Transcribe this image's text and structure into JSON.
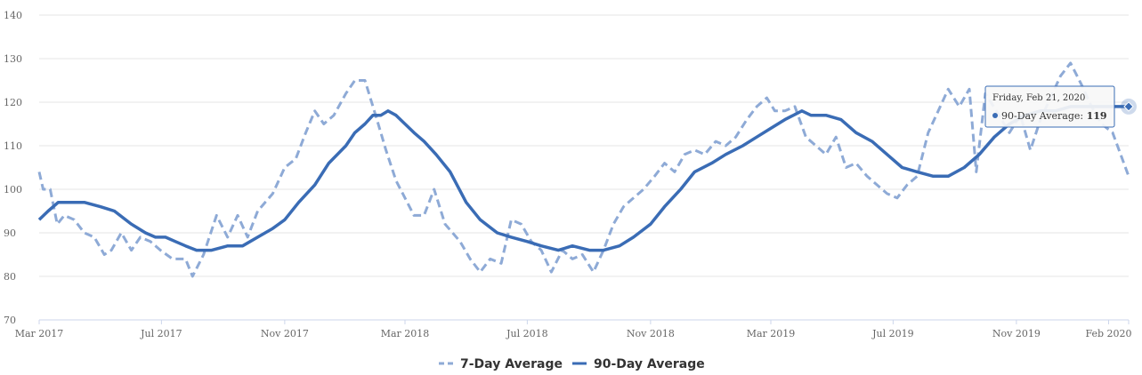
{
  "chart_data": {
    "type": "line",
    "title": "",
    "xlabel": "",
    "ylabel": "",
    "ylim": [
      70,
      140
    ],
    "y_ticks": [
      "70",
      "80",
      "90",
      "100",
      "110",
      "120",
      "130",
      "140"
    ],
    "x_range": [
      "2017-03-01",
      "2020-02-21"
    ],
    "x_ticks": [
      {
        "label": "Mar 2017",
        "date": "2017-03-01"
      },
      {
        "label": "Jul 2017",
        "date": "2017-07-01"
      },
      {
        "label": "Nov 2017",
        "date": "2017-11-01"
      },
      {
        "label": "Mar 2018",
        "date": "2018-03-01"
      },
      {
        "label": "Jul 2018",
        "date": "2018-07-01"
      },
      {
        "label": "Nov 2018",
        "date": "2018-11-01"
      },
      {
        "label": "Mar 2019",
        "date": "2019-03-01"
      },
      {
        "label": "Jul 2019",
        "date": "2019-07-01"
      },
      {
        "label": "Nov 2019",
        "date": "2019-11-01"
      },
      {
        "label": "Feb 2020",
        "date": "2020-02-01"
      }
    ],
    "grid": true,
    "legend_position": "bottom-center",
    "series": [
      {
        "name": "7-Day Average",
        "color": "#8eaad6",
        "style": "dashed",
        "points": [
          [
            "2017-03-01",
            104
          ],
          [
            "2017-03-05",
            100
          ],
          [
            "2017-03-12",
            100
          ],
          [
            "2017-03-19",
            92
          ],
          [
            "2017-03-26",
            94
          ],
          [
            "2017-04-05",
            93
          ],
          [
            "2017-04-15",
            90
          ],
          [
            "2017-04-25",
            89
          ],
          [
            "2017-05-05",
            85
          ],
          [
            "2017-05-12",
            86
          ],
          [
            "2017-05-22",
            90
          ],
          [
            "2017-06-01",
            86
          ],
          [
            "2017-06-10",
            89
          ],
          [
            "2017-06-20",
            88
          ],
          [
            "2017-06-30",
            86
          ],
          [
            "2017-07-12",
            84
          ],
          [
            "2017-07-25",
            84
          ],
          [
            "2017-08-01",
            80
          ],
          [
            "2017-08-12",
            85
          ],
          [
            "2017-08-25",
            94
          ],
          [
            "2017-09-05",
            89
          ],
          [
            "2017-09-15",
            94
          ],
          [
            "2017-09-25",
            89
          ],
          [
            "2017-10-05",
            95
          ],
          [
            "2017-10-20",
            99
          ],
          [
            "2017-11-01",
            105
          ],
          [
            "2017-11-12",
            107
          ],
          [
            "2017-11-22",
            113
          ],
          [
            "2017-12-01",
            118
          ],
          [
            "2017-12-10",
            115
          ],
          [
            "2017-12-20",
            117
          ],
          [
            "2018-01-01",
            122
          ],
          [
            "2018-01-10",
            125
          ],
          [
            "2018-01-20",
            125
          ],
          [
            "2018-02-01",
            116
          ],
          [
            "2018-02-10",
            109
          ],
          [
            "2018-02-20",
            102
          ],
          [
            "2018-03-01",
            98
          ],
          [
            "2018-03-10",
            94
          ],
          [
            "2018-03-20",
            94
          ],
          [
            "2018-03-30",
            100
          ],
          [
            "2018-04-10",
            92
          ],
          [
            "2018-04-25",
            88
          ],
          [
            "2018-05-05",
            84
          ],
          [
            "2018-05-15",
            81
          ],
          [
            "2018-05-25",
            84
          ],
          [
            "2018-06-05",
            83
          ],
          [
            "2018-06-15",
            93
          ],
          [
            "2018-06-25",
            92
          ],
          [
            "2018-07-05",
            88
          ],
          [
            "2018-07-15",
            86
          ],
          [
            "2018-07-25",
            81
          ],
          [
            "2018-08-05",
            86
          ],
          [
            "2018-08-15",
            84
          ],
          [
            "2018-08-25",
            85
          ],
          [
            "2018-09-05",
            81
          ],
          [
            "2018-09-15",
            86
          ],
          [
            "2018-09-25",
            92
          ],
          [
            "2018-10-05",
            96
          ],
          [
            "2018-10-15",
            98
          ],
          [
            "2018-10-25",
            100
          ],
          [
            "2018-11-05",
            103
          ],
          [
            "2018-11-15",
            106
          ],
          [
            "2018-11-25",
            104
          ],
          [
            "2018-12-05",
            108
          ],
          [
            "2018-12-15",
            109
          ],
          [
            "2018-12-25",
            108
          ],
          [
            "2019-01-05",
            111
          ],
          [
            "2019-01-15",
            110
          ],
          [
            "2019-01-25",
            112
          ],
          [
            "2019-02-05",
            116
          ],
          [
            "2019-02-15",
            119
          ],
          [
            "2019-02-25",
            121
          ],
          [
            "2019-03-05",
            118
          ],
          [
            "2019-03-15",
            118
          ],
          [
            "2019-03-25",
            119
          ],
          [
            "2019-04-05",
            112
          ],
          [
            "2019-04-15",
            110
          ],
          [
            "2019-04-25",
            108
          ],
          [
            "2019-05-05",
            112
          ],
          [
            "2019-05-15",
            105
          ],
          [
            "2019-05-25",
            106
          ],
          [
            "2019-06-05",
            103
          ],
          [
            "2019-06-15",
            101
          ],
          [
            "2019-06-25",
            99
          ],
          [
            "2019-07-05",
            98
          ],
          [
            "2019-07-15",
            101
          ],
          [
            "2019-07-25",
            103
          ],
          [
            "2019-08-05",
            113
          ],
          [
            "2019-08-15",
            118
          ],
          [
            "2019-08-25",
            123
          ],
          [
            "2019-09-05",
            119
          ],
          [
            "2019-09-15",
            123
          ],
          [
            "2019-09-22",
            104
          ],
          [
            "2019-10-01",
            122
          ],
          [
            "2019-10-12",
            118
          ],
          [
            "2019-10-25",
            113
          ],
          [
            "2019-11-05",
            117
          ],
          [
            "2019-11-15",
            109
          ],
          [
            "2019-11-25",
            116
          ],
          [
            "2019-12-05",
            121
          ],
          [
            "2019-12-15",
            126
          ],
          [
            "2019-12-25",
            129
          ],
          [
            "2020-01-05",
            124
          ],
          [
            "2020-01-15",
            119
          ],
          [
            "2020-01-25",
            115
          ],
          [
            "2020-02-05",
            113
          ],
          [
            "2020-02-21",
            103
          ]
        ]
      },
      {
        "name": "90-Day Average",
        "color": "#3a6cb5",
        "style": "solid",
        "points": [
          [
            "2017-03-01",
            93
          ],
          [
            "2017-03-10",
            95
          ],
          [
            "2017-03-20",
            97
          ],
          [
            "2017-04-01",
            97
          ],
          [
            "2017-04-15",
            97
          ],
          [
            "2017-05-01",
            96
          ],
          [
            "2017-05-15",
            95
          ],
          [
            "2017-06-01",
            92
          ],
          [
            "2017-06-15",
            90
          ],
          [
            "2017-06-25",
            89
          ],
          [
            "2017-07-05",
            89
          ],
          [
            "2017-07-15",
            88
          ],
          [
            "2017-07-25",
            87
          ],
          [
            "2017-08-05",
            86
          ],
          [
            "2017-08-20",
            86
          ],
          [
            "2017-09-05",
            87
          ],
          [
            "2017-09-20",
            87
          ],
          [
            "2017-10-05",
            89
          ],
          [
            "2017-10-20",
            91
          ],
          [
            "2017-11-01",
            93
          ],
          [
            "2017-11-15",
            97
          ],
          [
            "2017-12-01",
            101
          ],
          [
            "2017-12-15",
            106
          ],
          [
            "2018-01-01",
            110
          ],
          [
            "2018-01-10",
            113
          ],
          [
            "2018-01-20",
            115
          ],
          [
            "2018-01-28",
            117
          ],
          [
            "2018-02-05",
            117
          ],
          [
            "2018-02-12",
            118
          ],
          [
            "2018-02-20",
            117
          ],
          [
            "2018-03-01",
            115
          ],
          [
            "2018-03-10",
            113
          ],
          [
            "2018-03-20",
            111
          ],
          [
            "2018-04-01",
            108
          ],
          [
            "2018-04-15",
            104
          ],
          [
            "2018-05-01",
            97
          ],
          [
            "2018-05-15",
            93
          ],
          [
            "2018-06-01",
            90
          ],
          [
            "2018-06-15",
            89
          ],
          [
            "2018-07-01",
            88
          ],
          [
            "2018-07-15",
            87
          ],
          [
            "2018-08-01",
            86
          ],
          [
            "2018-08-15",
            87
          ],
          [
            "2018-09-01",
            86
          ],
          [
            "2018-09-15",
            86
          ],
          [
            "2018-10-01",
            87
          ],
          [
            "2018-10-15",
            89
          ],
          [
            "2018-11-01",
            92
          ],
          [
            "2018-11-15",
            96
          ],
          [
            "2018-12-01",
            100
          ],
          [
            "2018-12-15",
            104
          ],
          [
            "2019-01-01",
            106
          ],
          [
            "2019-01-15",
            108
          ],
          [
            "2019-02-01",
            110
          ],
          [
            "2019-02-15",
            112
          ],
          [
            "2019-03-01",
            114
          ],
          [
            "2019-03-15",
            116
          ],
          [
            "2019-04-01",
            118
          ],
          [
            "2019-04-10",
            117
          ],
          [
            "2019-04-25",
            117
          ],
          [
            "2019-05-10",
            116
          ],
          [
            "2019-05-25",
            113
          ],
          [
            "2019-06-10",
            111
          ],
          [
            "2019-06-25",
            108
          ],
          [
            "2019-07-10",
            105
          ],
          [
            "2019-07-25",
            104
          ],
          [
            "2019-08-10",
            103
          ],
          [
            "2019-08-25",
            103
          ],
          [
            "2019-09-10",
            105
          ],
          [
            "2019-09-25",
            108
          ],
          [
            "2019-10-10",
            112
          ],
          [
            "2019-10-25",
            115
          ],
          [
            "2019-11-10",
            117
          ],
          [
            "2019-11-25",
            118
          ],
          [
            "2019-12-10",
            118
          ],
          [
            "2019-12-25",
            119
          ],
          [
            "2020-01-10",
            119
          ],
          [
            "2020-01-25",
            119
          ],
          [
            "2020-02-10",
            119
          ],
          [
            "2020-02-21",
            119
          ]
        ]
      }
    ],
    "tooltip": {
      "date": "Friday, Feb 21, 2020",
      "series": "90-Day Average",
      "value": "119",
      "at_date": "2020-02-21"
    }
  },
  "legend": {
    "items": [
      {
        "label": "7-Day Average",
        "color": "#8eaad6",
        "style": "dashed"
      },
      {
        "label": "90-Day Average",
        "color": "#3a6cb5",
        "style": "solid"
      }
    ]
  }
}
